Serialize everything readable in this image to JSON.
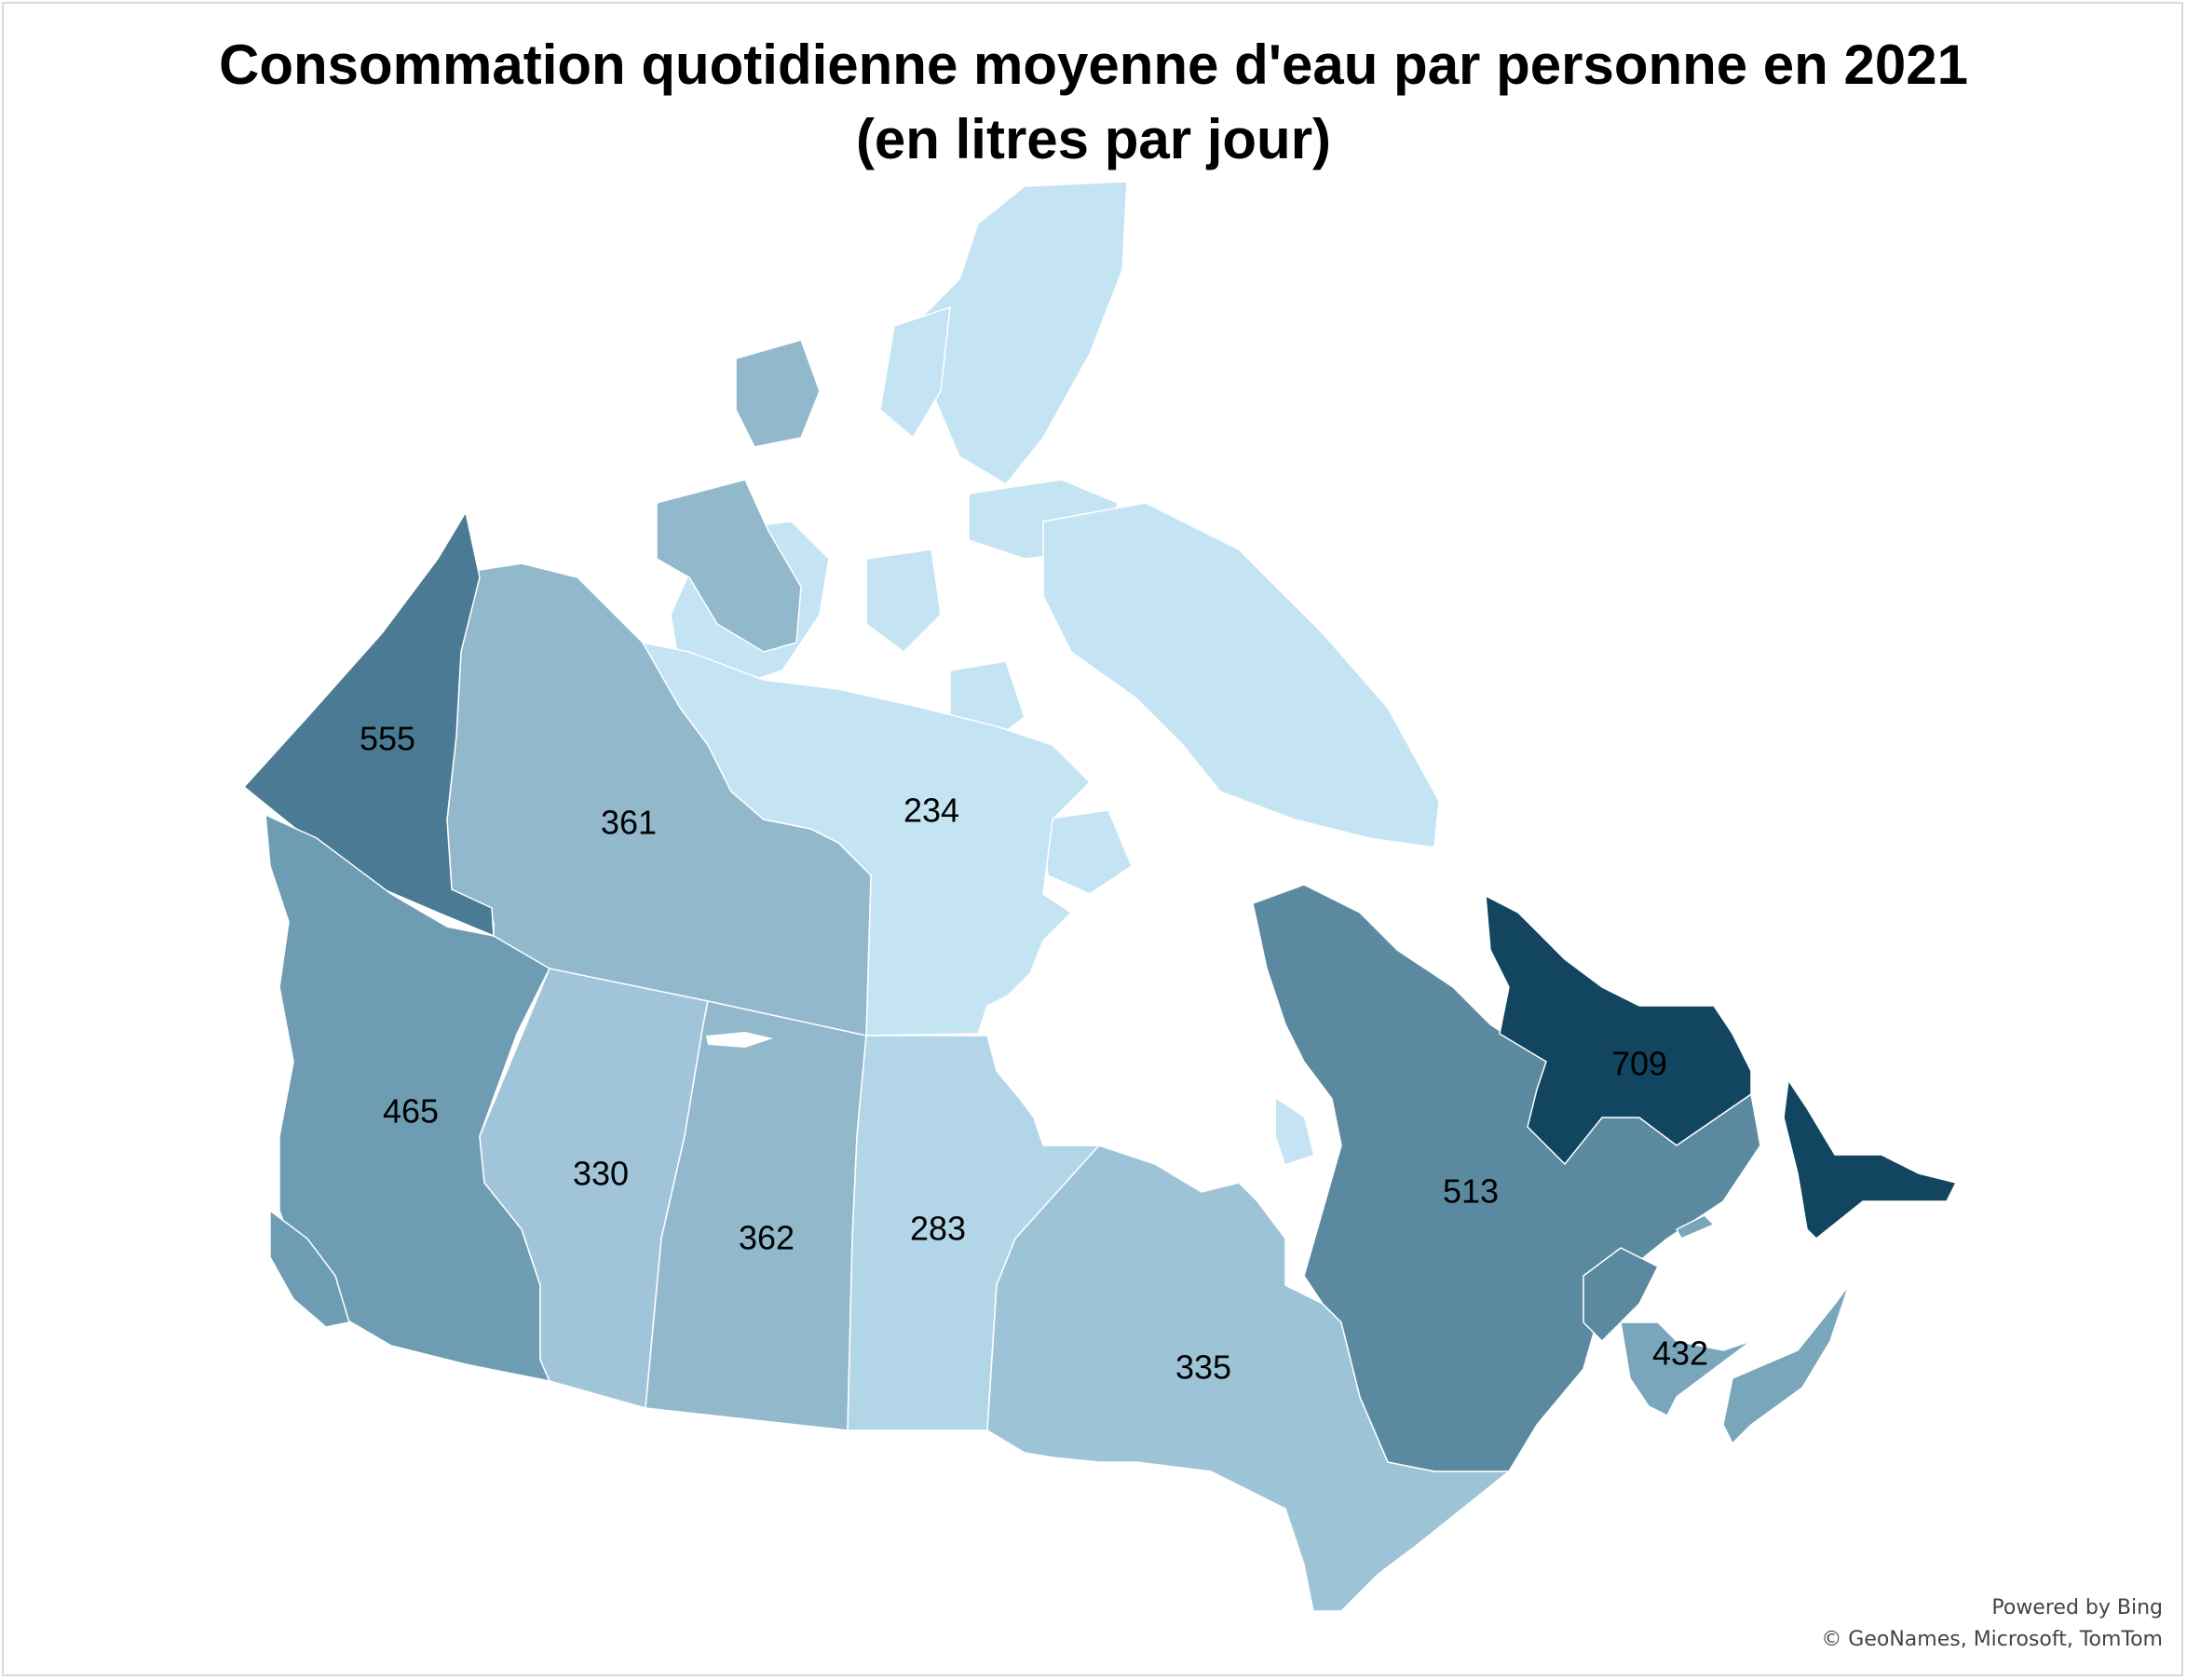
{
  "title": {
    "line1": "Consommation quotidienne moyenne d'eau par personne en 2021",
    "line2": "(en litres par jour)"
  },
  "attribution": {
    "line1": "Powered by Bing",
    "line2": "© GeoNames, Microsoft, TomTom"
  },
  "colors": {
    "background": "#ffffff",
    "border": "#d9d9d9",
    "scale_light": "#c4e4f4",
    "scale_dark": "#12455f"
  },
  "regions": [
    {
      "id": "yukon",
      "value": "555",
      "color": "#4b7b94"
    },
    {
      "id": "northwest-territories",
      "value": "361",
      "color": "#92b8cc"
    },
    {
      "id": "nunavut",
      "value": "234",
      "color": "#c4e4f4"
    },
    {
      "id": "british-columbia",
      "value": "465",
      "color": "#6e9db3"
    },
    {
      "id": "alberta",
      "value": "330",
      "color": "#a0c5d9"
    },
    {
      "id": "saskatchewan",
      "value": "362",
      "color": "#92b8cc"
    },
    {
      "id": "manitoba",
      "value": "283",
      "color": "#b2d6e8"
    },
    {
      "id": "ontario",
      "value": "335",
      "color": "#9dc3d6"
    },
    {
      "id": "quebec",
      "value": "513",
      "color": "#5b8aa0"
    },
    {
      "id": "newfoundland-and-labrador",
      "value": "709",
      "color": "#12455f"
    },
    {
      "id": "maritimes",
      "value": "432",
      "color": "#7aa6bc"
    }
  ]
}
